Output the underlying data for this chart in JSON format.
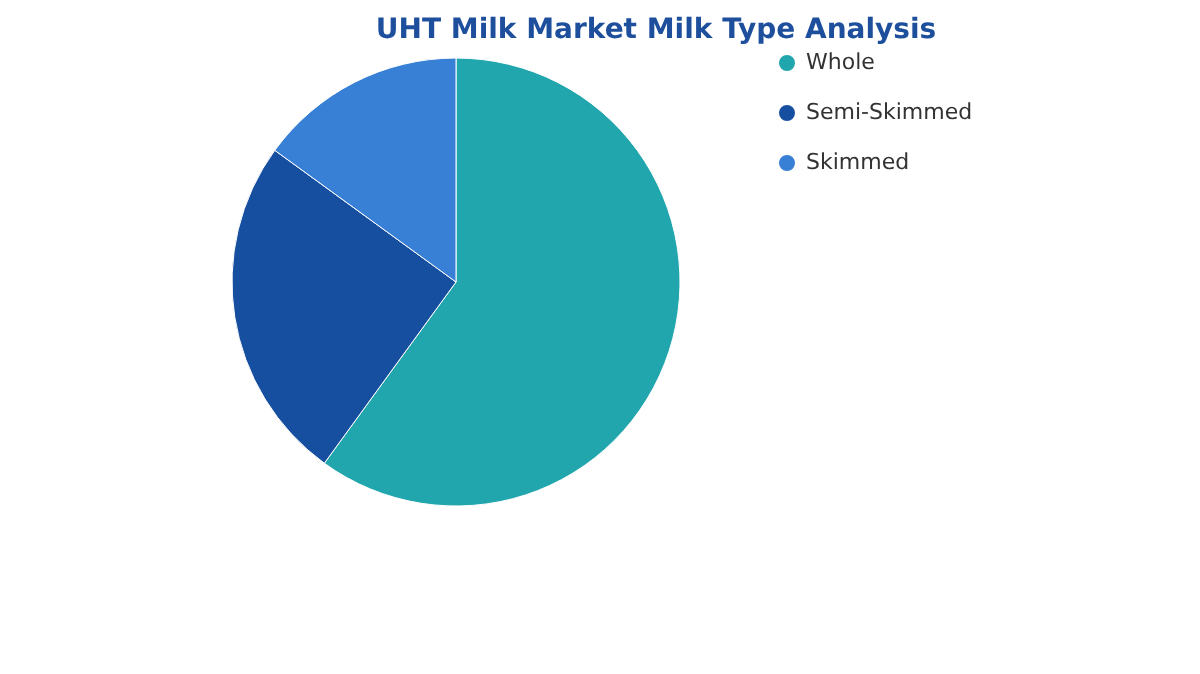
{
  "chart_data": {
    "type": "pie",
    "title": "UHT Milk Market Milk Type Analysis",
    "categories": [
      "Whole",
      "Semi-Skimmed",
      "Skimmed"
    ],
    "values": [
      60,
      25,
      15
    ],
    "colors": [
      "#21a6ae",
      "#174fa0",
      "#3880d6"
    ],
    "legend": "right"
  }
}
